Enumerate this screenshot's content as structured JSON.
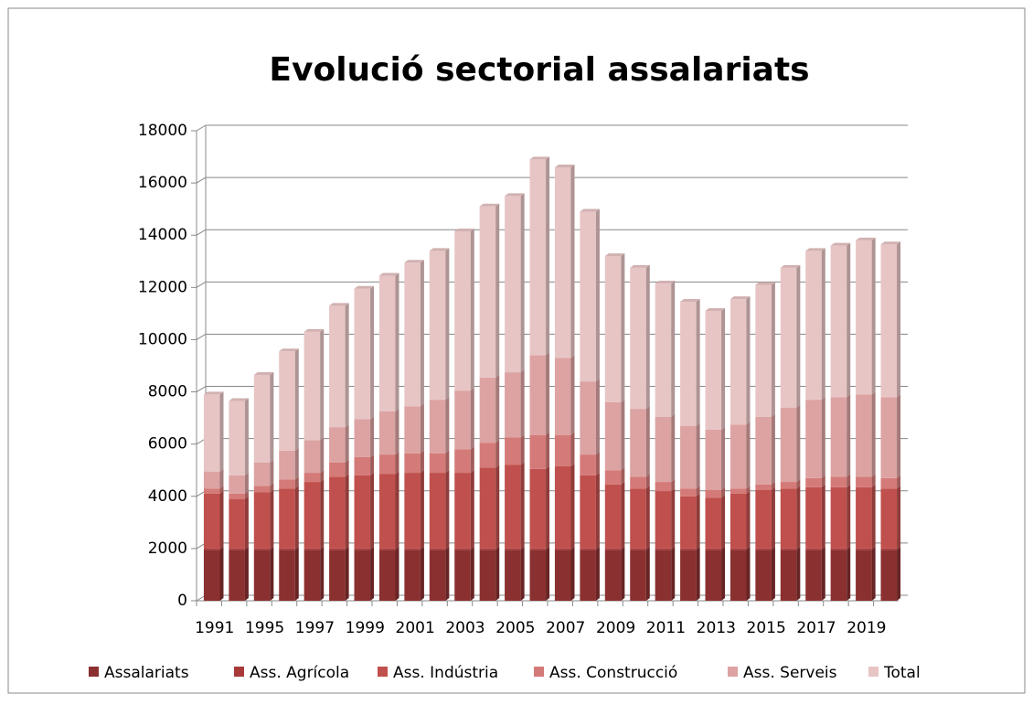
{
  "chart_data": {
    "type": "bar3d-stacked",
    "title": "Evolució sectorial assalariats",
    "categories": [
      "1991",
      null,
      "1995",
      null,
      "1997",
      null,
      "1999",
      null,
      "2001",
      null,
      "2003",
      null,
      "2005",
      null,
      "2007",
      null,
      "2009",
      null,
      "2011",
      null,
      "2013",
      null,
      "2015",
      null,
      "2017",
      null,
      "2019",
      null
    ],
    "series": [
      {
        "name": "Assalariats",
        "color": "#8b3030",
        "values": [
          1950,
          1950,
          1950,
          1950,
          1950,
          1950,
          1950,
          1950,
          1950,
          1950,
          1950,
          1950,
          1950,
          1950,
          1950,
          1950,
          1950,
          1950,
          1950,
          1950,
          1950,
          1950,
          1950,
          1950,
          1950,
          1950,
          1950,
          1950
        ]
      },
      {
        "name": "Ass. Agrícola",
        "color": "#a83a3a",
        "values": [
          50,
          50,
          50,
          50,
          50,
          50,
          50,
          50,
          50,
          50,
          50,
          50,
          50,
          50,
          50,
          50,
          50,
          50,
          50,
          50,
          50,
          50,
          50,
          50,
          50,
          50,
          50,
          50
        ]
      },
      {
        "name": "Ass. Indústria",
        "color": "#c0504d",
        "values": [
          2100,
          1900,
          2150,
          2300,
          2550,
          2750,
          2800,
          2850,
          2900,
          2900,
          2900,
          3100,
          3200,
          3050,
          3150,
          2800,
          2450,
          2300,
          2200,
          2000,
          1950,
          2100,
          2250,
          2300,
          2350,
          2350,
          2350,
          2300
        ]
      },
      {
        "name": "Ass. Construcció",
        "color": "#d47a78",
        "values": [
          200,
          200,
          250,
          350,
          350,
          550,
          700,
          750,
          750,
          750,
          900,
          950,
          1050,
          1300,
          1200,
          800,
          550,
          450,
          350,
          300,
          300,
          200,
          200,
          250,
          350,
          400,
          400,
          400
        ]
      },
      {
        "name": "Ass. Serveis",
        "color": "#dca3a2",
        "values": [
          650,
          700,
          900,
          1100,
          1250,
          1350,
          1450,
          1650,
          1800,
          2050,
          2250,
          2500,
          2500,
          3050,
          2950,
          2800,
          2600,
          2600,
          2500,
          2400,
          2300,
          2450,
          2600,
          2850,
          3000,
          3050,
          3150,
          3100
        ]
      },
      {
        "name": "Total",
        "color": "#e8c5c5",
        "values": [
          2950,
          2850,
          3350,
          3800,
          4150,
          4650,
          5000,
          5200,
          5500,
          5700,
          6100,
          6550,
          6750,
          7500,
          7300,
          6500,
          5600,
          5400,
          5100,
          4750,
          4550,
          4800,
          5050,
          5350,
          5700,
          5800,
          5900,
          5850
        ]
      }
    ],
    "ylim": [
      0,
      18000
    ],
    "yticks": [
      0,
      2000,
      4000,
      6000,
      8000,
      10000,
      12000,
      14000,
      16000,
      18000
    ],
    "grid": true
  }
}
